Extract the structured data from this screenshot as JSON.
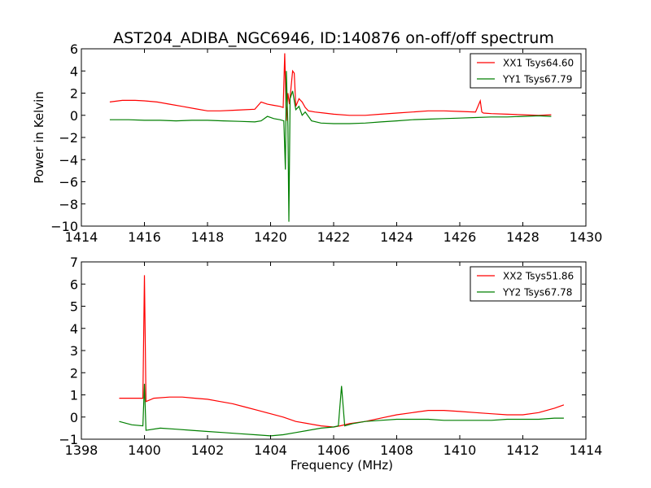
{
  "title": "AST204_ADIBA_NGC6946, ID:140876 on-off/off spectrum",
  "chart_data": [
    {
      "type": "line",
      "ylabel": "Power in Kelvin",
      "xlabel": "",
      "xlim": [
        1414,
        1430
      ],
      "ylim": [
        -10,
        6
      ],
      "xticks": [
        "1414",
        "1416",
        "1418",
        "1420",
        "1422",
        "1424",
        "1426",
        "1428",
        "1430"
      ],
      "yticks": [
        "−10",
        "−8",
        "−6",
        "−4",
        "−2",
        "0",
        "2",
        "4",
        "6"
      ],
      "legend_position": "top-right",
      "series": [
        {
          "name": "XX1 Tsys64.60",
          "color": "#ff0000",
          "x": [
            1414.9,
            1415.3,
            1415.7,
            1416.0,
            1416.4,
            1416.8,
            1417.2,
            1417.6,
            1418.0,
            1418.4,
            1418.8,
            1419.2,
            1419.5,
            1419.7,
            1419.9,
            1420.1,
            1420.3,
            1420.4,
            1420.45,
            1420.5,
            1420.55,
            1420.6,
            1420.7,
            1420.75,
            1420.8,
            1420.9,
            1421.0,
            1421.1,
            1421.2,
            1421.4,
            1421.7,
            1422.0,
            1422.5,
            1423.0,
            1423.5,
            1424.0,
            1424.5,
            1425.0,
            1425.5,
            1426.0,
            1426.5,
            1426.65,
            1426.7,
            1426.75,
            1427.0,
            1427.5,
            1428.0,
            1428.5,
            1428.9
          ],
          "y": [
            1.2,
            1.35,
            1.35,
            1.3,
            1.2,
            1.0,
            0.8,
            0.6,
            0.4,
            0.4,
            0.45,
            0.5,
            0.55,
            1.2,
            1.0,
            0.9,
            0.8,
            0.7,
            5.6,
            -0.5,
            2.0,
            1.0,
            4.0,
            3.8,
            0.8,
            1.5,
            1.2,
            0.7,
            0.4,
            0.3,
            0.2,
            0.1,
            0.0,
            0.0,
            0.1,
            0.2,
            0.3,
            0.4,
            0.4,
            0.35,
            0.3,
            1.3,
            0.3,
            0.2,
            0.15,
            0.1,
            0.05,
            0.0,
            0.05
          ]
        },
        {
          "name": "YY1 Tsys67.79",
          "color": "#007f00",
          "x": [
            1414.9,
            1415.5,
            1416.0,
            1416.5,
            1417.0,
            1417.5,
            1418.0,
            1418.5,
            1419.0,
            1419.5,
            1419.7,
            1419.9,
            1420.1,
            1420.3,
            1420.42,
            1420.47,
            1420.5,
            1420.55,
            1420.58,
            1420.62,
            1420.7,
            1420.8,
            1420.9,
            1421.0,
            1421.1,
            1421.3,
            1421.6,
            1422.0,
            1422.5,
            1423.0,
            1423.5,
            1424.0,
            1424.5,
            1425.0,
            1425.5,
            1426.0,
            1426.5,
            1427.0,
            1427.5,
            1428.0,
            1428.5,
            1428.9
          ],
          "y": [
            -0.4,
            -0.4,
            -0.45,
            -0.45,
            -0.5,
            -0.45,
            -0.45,
            -0.5,
            -0.55,
            -0.6,
            -0.5,
            -0.1,
            -0.3,
            -0.4,
            -0.5,
            -4.9,
            4.0,
            -1.0,
            -9.6,
            1.5,
            2.2,
            0.5,
            0.8,
            0.0,
            0.3,
            -0.5,
            -0.7,
            -0.75,
            -0.75,
            -0.7,
            -0.6,
            -0.5,
            -0.4,
            -0.35,
            -0.3,
            -0.25,
            -0.2,
            -0.15,
            -0.15,
            -0.1,
            -0.05,
            -0.1
          ]
        }
      ]
    },
    {
      "type": "line",
      "ylabel": "",
      "xlabel": "Frequency (MHz)",
      "xlim": [
        1398,
        1414
      ],
      "ylim": [
        -1,
        7
      ],
      "xticks": [
        "1398",
        "1400",
        "1402",
        "1404",
        "1406",
        "1408",
        "1410",
        "1412",
        "1414"
      ],
      "yticks": [
        "−1",
        "0",
        "1",
        "2",
        "3",
        "4",
        "5",
        "6",
        "7"
      ],
      "legend_position": "top-right",
      "series": [
        {
          "name": "XX2 Tsys51.86",
          "color": "#ff0000",
          "x": [
            1399.2,
            1399.6,
            1399.95,
            1400.0,
            1400.05,
            1400.3,
            1400.8,
            1401.2,
            1401.6,
            1402.0,
            1402.4,
            1402.8,
            1403.2,
            1403.6,
            1404.0,
            1404.4,
            1404.8,
            1405.2,
            1405.6,
            1406.0,
            1406.2,
            1406.5,
            1407.0,
            1407.5,
            1408.0,
            1408.5,
            1409.0,
            1409.5,
            1410.0,
            1410.5,
            1411.0,
            1411.5,
            1412.0,
            1412.5,
            1413.0,
            1413.3
          ],
          "y": [
            0.85,
            0.85,
            0.85,
            6.4,
            0.7,
            0.85,
            0.9,
            0.9,
            0.85,
            0.8,
            0.7,
            0.6,
            0.45,
            0.3,
            0.15,
            0.0,
            -0.2,
            -0.3,
            -0.4,
            -0.45,
            -0.4,
            -0.3,
            -0.2,
            -0.05,
            0.1,
            0.2,
            0.3,
            0.3,
            0.25,
            0.2,
            0.15,
            0.1,
            0.1,
            0.2,
            0.4,
            0.55
          ]
        },
        {
          "name": "YY2 Tsys67.78",
          "color": "#007f00",
          "x": [
            1399.2,
            1399.6,
            1399.95,
            1400.0,
            1400.05,
            1400.5,
            1401.0,
            1401.5,
            1402.0,
            1402.5,
            1403.0,
            1403.5,
            1404.0,
            1404.4,
            1404.8,
            1405.2,
            1405.6,
            1406.0,
            1406.15,
            1406.25,
            1406.35,
            1406.6,
            1407.0,
            1407.5,
            1408.0,
            1408.5,
            1409.0,
            1409.5,
            1410.0,
            1410.5,
            1411.0,
            1411.5,
            1412.0,
            1412.5,
            1413.0,
            1413.3
          ],
          "y": [
            -0.2,
            -0.35,
            -0.4,
            1.5,
            -0.6,
            -0.5,
            -0.55,
            -0.6,
            -0.65,
            -0.7,
            -0.75,
            -0.8,
            -0.85,
            -0.8,
            -0.7,
            -0.6,
            -0.5,
            -0.45,
            -0.4,
            1.4,
            -0.4,
            -0.3,
            -0.2,
            -0.15,
            -0.1,
            -0.1,
            -0.1,
            -0.15,
            -0.15,
            -0.15,
            -0.15,
            -0.1,
            -0.1,
            -0.1,
            -0.05,
            -0.05
          ]
        }
      ]
    }
  ]
}
